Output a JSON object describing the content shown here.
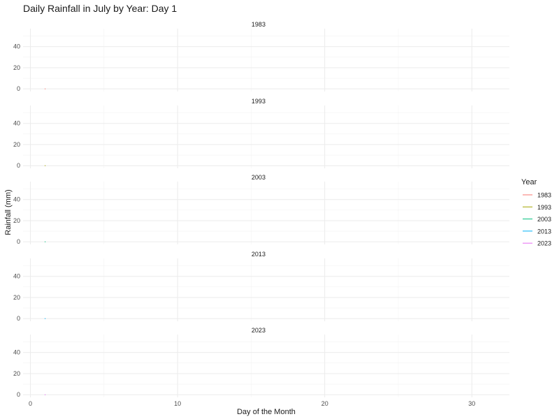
{
  "chart_data": {
    "type": "line",
    "title": "Daily Rainfall in July by Year: Day 1",
    "xlabel": "Day of the Month",
    "ylabel": "Rainfall (mm)",
    "facets": [
      "1983",
      "1993",
      "2003",
      "2013",
      "2023"
    ],
    "xlim": [
      0,
      31
    ],
    "ylim": [
      0,
      55
    ],
    "x_ticks": [
      0,
      10,
      20,
      30
    ],
    "y_ticks": [
      0,
      20,
      40
    ],
    "grid": true,
    "legend": {
      "title": "Year",
      "placement": "right",
      "entries": [
        "1983",
        "1993",
        "2003",
        "2013",
        "2023"
      ]
    },
    "series": [
      {
        "name": "1983",
        "color": "#F8766D",
        "x": [
          1
        ],
        "y": [
          0
        ]
      },
      {
        "name": "1993",
        "color": "#A3A500",
        "x": [
          1
        ],
        "y": [
          0
        ]
      },
      {
        "name": "2003",
        "color": "#00BF7D",
        "x": [
          1
        ],
        "y": [
          0
        ]
      },
      {
        "name": "2013",
        "color": "#00B0F6",
        "x": [
          1
        ],
        "y": [
          0
        ]
      },
      {
        "name": "2023",
        "color": "#E76BF3",
        "x": [
          1
        ],
        "y": [
          0
        ]
      }
    ]
  }
}
